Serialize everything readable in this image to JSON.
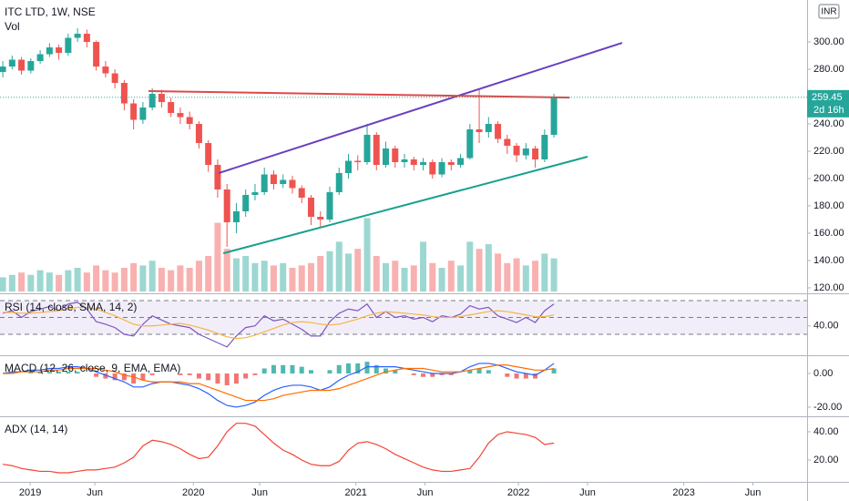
{
  "header": {
    "currency": "INR"
  },
  "chart_data": [
    {
      "type": "candlestick",
      "title": "ITC LTD, 1W, NSE",
      "up_color": "#26a69a",
      "down_color": "#ef5350",
      "countdown": "2d 16h",
      "xlim": [
        -0.3,
        86.1
      ],
      "xticks": [
        {
          "value": 2.93,
          "label": "2019"
        },
        {
          "value": 9.85,
          "label": "Jun"
        },
        {
          "value": 20.4,
          "label": "2020"
        },
        {
          "value": 27.5,
          "label": "Jun"
        },
        {
          "value": 37.8,
          "label": "2021"
        },
        {
          "value": 45.2,
          "label": "Jun"
        },
        {
          "value": 55.2,
          "label": "2022"
        },
        {
          "value": 62.6,
          "label": "Jun"
        },
        {
          "value": 72.9,
          "label": "2023"
        },
        {
          "value": 80.3,
          "label": "Jun"
        }
      ],
      "ylim": [
        116,
        330.7
      ],
      "yticks": [
        {
          "value": 120,
          "label": "120.00"
        },
        {
          "value": 140,
          "label": "140.00"
        },
        {
          "value": 160,
          "label": "160.00"
        },
        {
          "value": 180,
          "label": "180.00"
        },
        {
          "value": 200,
          "label": "200.00"
        },
        {
          "value": 220,
          "label": "220.00"
        },
        {
          "value": 240,
          "label": "240.00"
        },
        {
          "value": 260,
          "label": "260.00"
        },
        {
          "value": 280,
          "label": "280.00"
        },
        {
          "value": 300,
          "label": "300.00"
        }
      ],
      "ohlc": [
        [
          278,
          286,
          274,
          282
        ],
        [
          282,
          290,
          280,
          287
        ],
        [
          287,
          289,
          276,
          279
        ],
        [
          279,
          288,
          277,
          286
        ],
        [
          286,
          294,
          284,
          291
        ],
        [
          291,
          299,
          289,
          296
        ],
        [
          296,
          298,
          287,
          292
        ],
        [
          292,
          306,
          290,
          303
        ],
        [
          303,
          310,
          300,
          306
        ],
        [
          306,
          309,
          296,
          300
        ],
        [
          300,
          301,
          279,
          282
        ],
        [
          282,
          286,
          274,
          277
        ],
        [
          277,
          280,
          266,
          270
        ],
        [
          270,
          272,
          250,
          255
        ],
        [
          255,
          258,
          236,
          243
        ],
        [
          243,
          256,
          240,
          252
        ],
        [
          252,
          266,
          250,
          262
        ],
        [
          262,
          265,
          252,
          256
        ],
        [
          256,
          259,
          245,
          248
        ],
        [
          248,
          252,
          240,
          245
        ],
        [
          245,
          249,
          236,
          240
        ],
        [
          240,
          242,
          222,
          226
        ],
        [
          226,
          228,
          205,
          210
        ],
        [
          210,
          214,
          186,
          192
        ],
        [
          192,
          196,
          150,
          168
        ],
        [
          168,
          182,
          160,
          176
        ],
        [
          176,
          192,
          172,
          188
        ],
        [
          188,
          196,
          184,
          190
        ],
        [
          190,
          208,
          188,
          203
        ],
        [
          203,
          206,
          192,
          196
        ],
        [
          196,
          203,
          193,
          199
        ],
        [
          199,
          202,
          189,
          193
        ],
        [
          193,
          195,
          182,
          186
        ],
        [
          186,
          188,
          166,
          172
        ],
        [
          172,
          176,
          164,
          170
        ],
        [
          170,
          194,
          168,
          190
        ],
        [
          190,
          208,
          188,
          204
        ],
        [
          204,
          218,
          200,
          213
        ],
        [
          213,
          217,
          206,
          212
        ],
        [
          212,
          240,
          210,
          232
        ],
        [
          232,
          234,
          206,
          210
        ],
        [
          210,
          227,
          208,
          222
        ],
        [
          222,
          224,
          208,
          212
        ],
        [
          212,
          218,
          208,
          214
        ],
        [
          214,
          216,
          206,
          210
        ],
        [
          210,
          215,
          206,
          212
        ],
        [
          212,
          214,
          200,
          203
        ],
        [
          203,
          215,
          201,
          212
        ],
        [
          212,
          214,
          206,
          210
        ],
        [
          210,
          218,
          208,
          215
        ],
        [
          215,
          240,
          214,
          236
        ],
        [
          236,
          265,
          226,
          234
        ],
        [
          234,
          245,
          230,
          240
        ],
        [
          240,
          242,
          226,
          229
        ],
        [
          229,
          232,
          218,
          224
        ],
        [
          224,
          226,
          212,
          217
        ],
        [
          217,
          226,
          214,
          222
        ],
        [
          222,
          224,
          208,
          214
        ],
        [
          214,
          236,
          212,
          232
        ],
        [
          232,
          262,
          230,
          259.45
        ]
      ],
      "volume": {
        "name": "Vol",
        "lim": [
          0,
          500
        ],
        "values": [
          60,
          70,
          80,
          70,
          90,
          80,
          70,
          90,
          100,
          80,
          110,
          90,
          80,
          100,
          120,
          110,
          130,
          100,
          90,
          110,
          100,
          130,
          150,
          290,
          180,
          140,
          150,
          120,
          130,
          110,
          120,
          100,
          110,
          120,
          150,
          170,
          210,
          160,
          180,
          310,
          150,
          120,
          130,
          100,
          110,
          210,
          120,
          100,
          130,
          110,
          210,
          180,
          200,
          160,
          120,
          140,
          110,
          130,
          160,
          140
        ]
      },
      "trendlines": [
        {
          "color": "#6a3fc0",
          "x": [
            23.1,
            66.3
          ],
          "y": [
            204,
            299.3
          ]
        },
        {
          "color": "#e0484a",
          "x": [
            15.6,
            60.7
          ],
          "y": [
            264,
            259.3
          ]
        },
        {
          "color": "#17a08c",
          "x": [
            23.6,
            62.6
          ],
          "y": [
            145.3,
            216
          ]
        }
      ]
    },
    {
      "type": "line",
      "title": "RSI (14, close, SMA, 14, 2)",
      "ylim": [
        6.2,
        77.6
      ],
      "yticks": [
        {
          "value": 40,
          "label": "40.00"
        }
      ],
      "bands": [
        30,
        50,
        70
      ],
      "series": [
        {
          "color": "#7e57c2",
          "values": [
            55,
            58,
            50,
            57,
            60,
            63,
            58,
            66,
            68,
            60,
            45,
            42,
            38,
            30,
            28,
            42,
            52,
            47,
            42,
            40,
            38,
            30,
            25,
            20,
            15,
            28,
            38,
            40,
            52,
            46,
            48,
            42,
            36,
            28,
            28,
            45,
            55,
            60,
            58,
            66,
            50,
            57,
            50,
            52,
            48,
            50,
            45,
            52,
            50,
            54,
            64,
            60,
            62,
            52,
            48,
            44,
            50,
            44,
            58,
            66
          ]
        },
        {
          "color": "#f5b54a",
          "values": [
            56,
            56,
            55,
            55,
            56,
            57,
            58,
            60,
            62,
            62,
            60,
            56,
            52,
            47,
            42,
            40,
            40,
            41,
            42,
            43,
            41,
            38,
            35,
            31,
            27,
            25,
            26,
            29,
            33,
            37,
            41,
            44,
            45,
            44,
            42,
            41,
            42,
            45,
            48,
            52,
            55,
            57,
            56,
            55,
            54,
            53,
            51,
            50,
            50,
            51,
            53,
            55,
            57,
            58,
            57,
            55,
            53,
            51,
            51,
            53
          ]
        }
      ]
    },
    {
      "type": "line",
      "title": "MACD (12, 26, close, 9, EMA, EMA)",
      "ylim": [
        -24.9,
        10.3
      ],
      "yticks": [
        {
          "value": 0,
          "label": "0.00"
        },
        {
          "value": -20,
          "label": "-20.00"
        }
      ],
      "series": [
        {
          "kind": "histogram",
          "color": "#26a69a",
          "negative_color": "#ef5350",
          "values": [
            0,
            1,
            0,
            1,
            1,
            1,
            1,
            1,
            1,
            0,
            -2,
            -3,
            -4,
            -4,
            -6,
            -4,
            -1,
            0,
            0,
            -1,
            -1,
            -3,
            -4,
            -6,
            -7,
            -6,
            -3,
            -1,
            3,
            5,
            5,
            5,
            4,
            2,
            0,
            2,
            5,
            6,
            6,
            7,
            5,
            3,
            2,
            0,
            -1,
            -2,
            -2,
            -1,
            -1,
            0,
            2,
            3,
            2,
            0,
            -2,
            -3,
            -3,
            -3,
            0,
            3
          ]
        },
        {
          "color": "#2962ff",
          "values": [
            0,
            1,
            1,
            2,
            2,
            3,
            3,
            4,
            4,
            3,
            1,
            -1,
            -3,
            -5,
            -8,
            -8,
            -6,
            -5,
            -5,
            -6,
            -7,
            -9,
            -12,
            -16,
            -19,
            -20,
            -19,
            -17,
            -13,
            -10,
            -8,
            -7,
            -7,
            -8,
            -10,
            -8,
            -4,
            -1,
            1,
            4,
            4,
            4,
            4,
            3,
            2,
            1,
            0,
            0,
            0,
            1,
            4,
            6,
            6,
            5,
            3,
            1,
            0,
            -1,
            2,
            6
          ]
        },
        {
          "color": "#ff6d00",
          "values": [
            0,
            0,
            1,
            1,
            1,
            2,
            2,
            3,
            3,
            3,
            3,
            2,
            1,
            -1,
            -2,
            -4,
            -5,
            -5,
            -5,
            -5,
            -6,
            -6,
            -8,
            -10,
            -12,
            -14,
            -16,
            -16,
            -16,
            -15,
            -13,
            -12,
            -11,
            -10,
            -10,
            -10,
            -9,
            -7,
            -5,
            -3,
            -1,
            1,
            2,
            3,
            3,
            3,
            2,
            1,
            1,
            1,
            2,
            3,
            4,
            5,
            5,
            4,
            3,
            2,
            2,
            3
          ]
        }
      ]
    },
    {
      "type": "line",
      "title": "ADX (14, 14)",
      "ylim": [
        5.2,
        50.3
      ],
      "yticks": [
        {
          "value": 40,
          "label": "40.00"
        },
        {
          "value": 20,
          "label": "20.00"
        }
      ],
      "series": [
        {
          "color": "#f44336",
          "values": [
            17,
            16,
            14,
            13,
            12,
            12,
            11,
            11,
            12,
            13,
            13,
            14,
            15,
            18,
            22,
            30,
            34,
            33,
            31,
            28,
            24,
            21,
            22,
            30,
            40,
            46,
            46,
            44,
            38,
            32,
            27,
            24,
            20,
            17,
            16,
            16,
            19,
            27,
            32,
            33,
            31,
            28,
            24,
            21,
            18,
            15,
            13,
            12,
            12,
            13,
            14,
            22,
            32,
            38,
            40,
            39,
            38,
            36,
            31,
            32
          ]
        }
      ]
    }
  ]
}
